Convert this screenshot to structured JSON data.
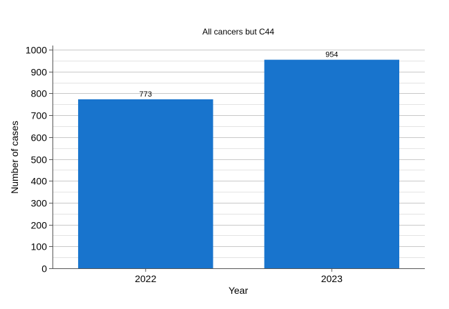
{
  "chart_data": {
    "type": "bar",
    "title": "All cancers but C44",
    "xlabel": "Year",
    "ylabel": "Number of cases",
    "categories": [
      "2022",
      "2023"
    ],
    "values": [
      773,
      954
    ],
    "data_labels": [
      "773",
      "954"
    ],
    "ylim": [
      0,
      1000
    ],
    "yticks": [
      0,
      100,
      200,
      300,
      400,
      500,
      600,
      700,
      800,
      900,
      1000
    ],
    "ytick_labels": [
      "0",
      "100",
      "200",
      "300",
      "400",
      "500",
      "600",
      "700",
      "800",
      "900",
      "1000"
    ],
    "minor_step": 50,
    "grid": true,
    "legend": "none",
    "bar_color": "#1874cd"
  }
}
